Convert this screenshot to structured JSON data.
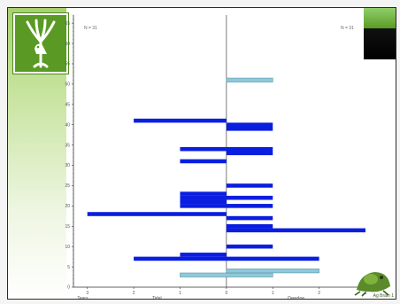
{
  "chart_data": {
    "type": "bar",
    "orientation": "horizontal",
    "n_left": "N = 31",
    "n_right": "N = 31",
    "x_axis_labels": [
      "Tears",
      "Tidal",
      "Overdoe"
    ],
    "x_ticks": [
      "3",
      "2",
      "1",
      "0",
      "1",
      "2",
      "3"
    ],
    "y_ticks": [
      "0",
      "5",
      "10",
      "15",
      "20",
      "25",
      "30",
      "35",
      "40",
      "45",
      "50",
      "55",
      "60",
      "65"
    ],
    "xlim": [
      -3.3,
      3.0
    ],
    "ylim": [
      0,
      67
    ],
    "grid": false,
    "series": [
      {
        "color": "#0a1ee0",
        "bars": [
          {
            "y": 7,
            "x0": -2.0,
            "x1": 2.0
          },
          {
            "y": 8,
            "x0": -1.0,
            "x1": 0.0
          },
          {
            "y": 10,
            "x0": 0.0,
            "x1": 1.0
          },
          {
            "y": 14,
            "x0": 0.0,
            "x1": 3.0
          },
          {
            "y": 15,
            "x0": 0.0,
            "x1": 1.0
          },
          {
            "y": 17,
            "x0": 0.0,
            "x1": 1.0
          },
          {
            "y": 18,
            "x0": -3.0,
            "x1": 0.0
          },
          {
            "y": 20,
            "x0": 0.0,
            "x1": 1.0
          },
          {
            "y": 20,
            "x0": -1.0,
            "x1": 0.0
          },
          {
            "y": 21,
            "x0": -1.0,
            "x1": 0.0
          },
          {
            "y": 22,
            "x0": -1.0,
            "x1": 0.0
          },
          {
            "y": 22,
            "x0": 0.0,
            "x1": 1.0
          },
          {
            "y": 23,
            "x0": -1.0,
            "x1": 0.0
          },
          {
            "y": 25,
            "x0": 0.0,
            "x1": 1.0
          },
          {
            "y": 31,
            "x0": -1.0,
            "x1": 0.0
          },
          {
            "y": 33,
            "x0": 0.0,
            "x1": 1.0
          },
          {
            "y": 34,
            "x0": -1.0,
            "x1": 0.0
          },
          {
            "y": 34,
            "x0": 0.0,
            "x1": 1.0
          },
          {
            "y": 39,
            "x0": 0.0,
            "x1": 1.0
          },
          {
            "y": 40,
            "x0": 0.0,
            "x1": 1.0
          },
          {
            "y": 41,
            "x0": -2.0,
            "x1": 0.0
          }
        ]
      },
      {
        "color": "#8fc8d8",
        "bars": [
          {
            "y": 3,
            "x0": -1.0,
            "x1": 1.0
          },
          {
            "y": 4,
            "x0": 0.0,
            "x1": 2.0
          },
          {
            "y": 51,
            "x0": 0.0,
            "x1": 1.0
          }
        ]
      }
    ]
  },
  "brand_text": "Ag Brain 1"
}
